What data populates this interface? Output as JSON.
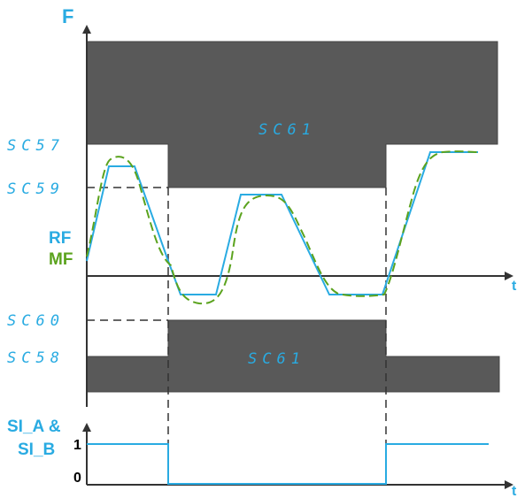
{
  "colors": {
    "band": "#595959",
    "band_edge": "#444444",
    "ref": "#29abe2",
    "meas": "#5ba31e",
    "axis": "#333333",
    "text_dark": "#000000"
  },
  "axes": {
    "force_label": "F",
    "time_label": "t",
    "logic_low": "0",
    "logic_high": "1"
  },
  "params": {
    "sc57": "SC57",
    "sc59": "SC59",
    "sc60": "SC60",
    "sc58": "SC58",
    "sc61_upper": "SC61",
    "sc61_lower": "SC61"
  },
  "legend": {
    "rf": "RF",
    "mf": "MF",
    "si_line1": "SI_A &",
    "si_line2": "SI_B"
  }
}
